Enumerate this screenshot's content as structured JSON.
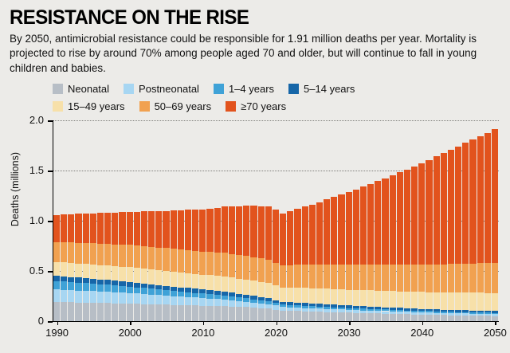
{
  "header": {
    "title": "RESISTANCE ON THE RISE",
    "subtitle": "By 2050, antimicrobial resistance could be responsible for 1.91 million deaths per year. Mortality is projected to rise by around 70% among people aged 70 and older, but will continue to fall in young children and babies."
  },
  "chart_data": {
    "type": "bar",
    "stacked": true,
    "title": "RESISTANCE ON THE RISE",
    "ylabel": "Deaths (millions)",
    "ylim": [
      0,
      2.0
    ],
    "yticks": [
      {
        "value": 0,
        "label": "0"
      },
      {
        "value": 0.5,
        "label": "0.5"
      },
      {
        "value": 1.0,
        "label": "1.0"
      },
      {
        "value": 1.5,
        "label": "1.5"
      },
      {
        "value": 2.0,
        "label": "2.0"
      }
    ],
    "xticks": [
      1990,
      2000,
      2010,
      2020,
      2030,
      2040,
      2050
    ],
    "year_start": 1990,
    "year_end": 2050,
    "bar_per_year": true,
    "legend_position": "top",
    "legend_split": 4,
    "grid": "dotted-horizontal",
    "anchor_years": [
      1990,
      1995,
      2000,
      2005,
      2010,
      2013,
      2016,
      2019,
      2021,
      2023,
      2025,
      2030,
      2035,
      2040,
      2045,
      2050
    ],
    "series": [
      {
        "name": "Neonatal",
        "color": "#b7bec6",
        "values": [
          0.19,
          0.185,
          0.175,
          0.165,
          0.155,
          0.15,
          0.14,
          0.125,
          0.105,
          0.1,
          0.095,
          0.085,
          0.075,
          0.065,
          0.058,
          0.052
        ]
      },
      {
        "name": "Postneonatal",
        "color": "#a7d6f2",
        "values": [
          0.125,
          0.115,
          0.105,
          0.09,
          0.075,
          0.065,
          0.055,
          0.045,
          0.037,
          0.035,
          0.033,
          0.028,
          0.025,
          0.022,
          0.02,
          0.018
        ]
      },
      {
        "name": "1–4 years",
        "color": "#3fa2d7",
        "values": [
          0.085,
          0.075,
          0.065,
          0.055,
          0.045,
          0.04,
          0.033,
          0.027,
          0.023,
          0.022,
          0.021,
          0.018,
          0.016,
          0.015,
          0.014,
          0.013
        ]
      },
      {
        "name": "5–14 years",
        "color": "#1666a8",
        "values": [
          0.05,
          0.048,
          0.046,
          0.043,
          0.04,
          0.038,
          0.035,
          0.032,
          0.028,
          0.028,
          0.027,
          0.025,
          0.023,
          0.021,
          0.019,
          0.018
        ]
      },
      {
        "name": "15–49 years",
        "color": "#f7e0a9",
        "values": [
          0.14,
          0.142,
          0.148,
          0.15,
          0.15,
          0.152,
          0.152,
          0.15,
          0.14,
          0.148,
          0.152,
          0.158,
          0.163,
          0.168,
          0.174,
          0.18
        ]
      },
      {
        "name": "50–69 years",
        "color": "#f1a150",
        "values": [
          0.2,
          0.21,
          0.22,
          0.225,
          0.23,
          0.235,
          0.235,
          0.235,
          0.22,
          0.23,
          0.235,
          0.25,
          0.26,
          0.272,
          0.286,
          0.3
        ]
      },
      {
        "name": "≥70 years",
        "color": "#e2531d",
        "values": [
          0.27,
          0.3,
          0.33,
          0.37,
          0.42,
          0.46,
          0.5,
          0.53,
          0.52,
          0.56,
          0.6,
          0.72,
          0.86,
          1.01,
          1.17,
          1.33
        ]
      }
    ]
  }
}
